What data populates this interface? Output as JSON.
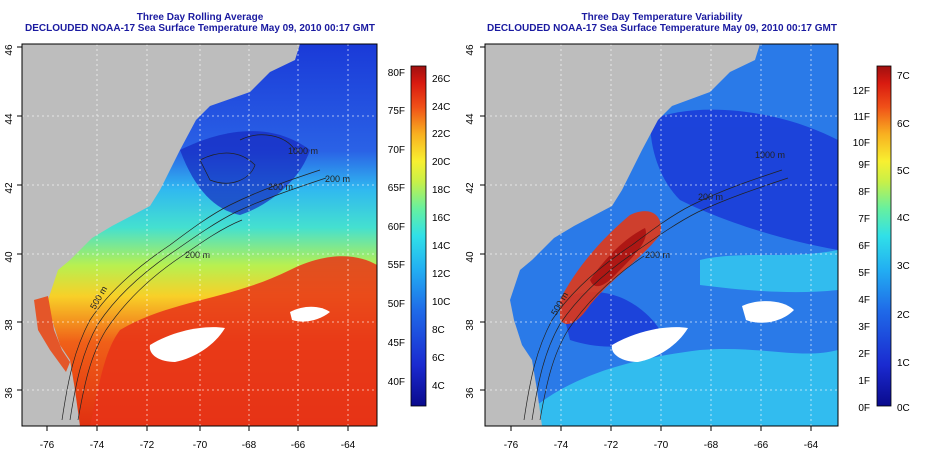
{
  "left_panel": {
    "title": "Three Day Rolling Average",
    "subtitle": "DECLOUDED NOAA-17 Sea Surface Temperature May 09, 2010 00:17 GMT",
    "lon_ticks": [
      "-76",
      "-74",
      "-72",
      "-70",
      "-68",
      "-66",
      "-64"
    ],
    "lat_ticks": [
      "36",
      "38",
      "40",
      "42",
      "44",
      "46"
    ],
    "contour_labels": [
      "1000 m",
      "200 m",
      "200 m",
      "500 m",
      "200 m",
      "200 m",
      "500 m"
    ],
    "colorbar": {
      "f_labels": [
        "40F",
        "45F",
        "50F",
        "55F",
        "60F",
        "65F",
        "70F",
        "75F",
        "80F"
      ],
      "c_labels": [
        "4C",
        "6C",
        "8C",
        "10C",
        "12C",
        "14C",
        "16C",
        "18C",
        "20C",
        "22C",
        "24C",
        "26C"
      ],
      "colors": [
        "#0a0a8c",
        "#1a2ad0",
        "#1f6ae8",
        "#22aef2",
        "#30e0e8",
        "#66f0a0",
        "#c8f048",
        "#f8f030",
        "#f8b020",
        "#f05018",
        "#d81a10",
        "#a01010"
      ]
    }
  },
  "right_panel": {
    "title": "Three Day Temperature Variability",
    "subtitle": "DECLOUDED NOAA-17 Sea Surface Temperature May 09, 2010 00:17 GMT",
    "lon_ticks": [
      "-76",
      "-74",
      "-72",
      "-70",
      "-68",
      "-66",
      "-64"
    ],
    "lat_ticks": [
      "36",
      "38",
      "40",
      "42",
      "44",
      "46"
    ],
    "contour_labels": [
      "1000 m",
      "200 m",
      "200 m",
      "500 m"
    ],
    "colorbar": {
      "f_labels": [
        "0F",
        "1F",
        "2F",
        "3F",
        "4F",
        "5F",
        "6F",
        "7F",
        "8F",
        "9F",
        "10F",
        "11F",
        "12F"
      ],
      "c_labels": [
        "0C",
        "1C",
        "2C",
        "3C",
        "4C",
        "5C",
        "6C",
        "7C"
      ],
      "colors": [
        "#0a0a8c",
        "#1a2ad0",
        "#1f6ae8",
        "#22aef2",
        "#30e0e8",
        "#66f0a0",
        "#c8f048",
        "#f8f030",
        "#f8b020",
        "#f05018",
        "#d81a10",
        "#a01010"
      ]
    }
  },
  "colors": {
    "land": "#bdbdbd",
    "title": "#1a1aa0",
    "contour": "#222222",
    "frame": "#000000"
  }
}
